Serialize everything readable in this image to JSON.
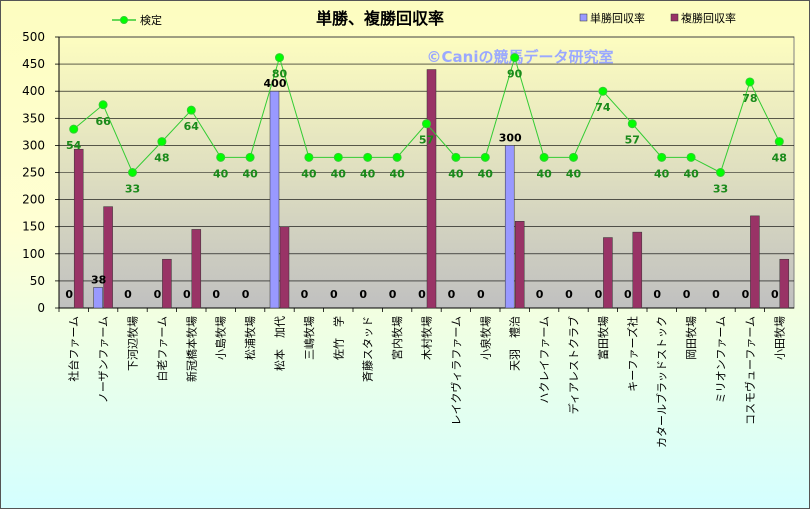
{
  "chart_data": {
    "type": "bar",
    "title": "単勝、複勝回収率",
    "watermark": "©Caniの競馬データ研究室",
    "ylim": [
      0,
      500
    ],
    "yticks": [
      "0",
      "50",
      "100",
      "150",
      "200",
      "250",
      "300",
      "350",
      "400",
      "450",
      "500"
    ],
    "legend": {
      "line": "検定",
      "win": "単勝回収率",
      "place": "複勝回収率",
      "placement": "top"
    },
    "colors": {
      "win": "#9999ff",
      "place": "#993366",
      "line": "#00ff00",
      "line_stroke": "#33cc33",
      "plot_bg_top": "#fdfdc0",
      "plot_bg_bottom": "#c0c0c0"
    },
    "categories": [
      "社台ファーム",
      "ノーザンファーム",
      "下河辺牧場",
      "白老ファーム",
      "新冠橋本牧場",
      "小島牧場",
      "松浦牧場",
      "松本　加代",
      "三嶋牧場",
      "佐竹　学",
      "斉藤スタッド",
      "宮内牧場",
      "木村牧場",
      "レイクヴィラファーム",
      "小泉牧場",
      "天羽　禮治",
      "ハクレイファーム",
      "ディアレストクラブ",
      "富田牧場",
      "キーファーズ社",
      "カタールブラッドストック",
      "岡田牧場",
      "ミリオンファーム",
      "コスモヴューファーム",
      "小田牧場"
    ],
    "series": [
      {
        "name": "単勝回収率",
        "kind": "bar",
        "values": [
          0,
          38,
          0,
          0,
          0,
          0,
          0,
          400,
          0,
          0,
          0,
          0,
          0,
          0,
          0,
          300,
          0,
          0,
          0,
          0,
          0,
          0,
          0,
          0,
          0
        ]
      },
      {
        "name": "複勝回収率",
        "kind": "bar",
        "values": [
          293,
          187,
          0,
          90,
          145,
          0,
          0,
          150,
          0,
          0,
          0,
          0,
          440,
          0,
          0,
          160,
          0,
          0,
          130,
          140,
          0,
          0,
          0,
          170,
          90
        ]
      },
      {
        "name": "検定",
        "kind": "line",
        "values": [
          330,
          375,
          250,
          307,
          365,
          278,
          278,
          462,
          278,
          278,
          278,
          278,
          340,
          278,
          278,
          462,
          278,
          278,
          400,
          340,
          278,
          278,
          250,
          417,
          307
        ],
        "labels": [
          "54",
          "66",
          "33",
          "48",
          "64",
          "40",
          "40",
          "80",
          "40",
          "40",
          "40",
          "40",
          "57",
          "40",
          "40",
          "90",
          "40",
          "40",
          "74",
          "57",
          "40",
          "40",
          "33",
          "78",
          "48"
        ]
      }
    ],
    "win_labels": [
      "0",
      "38",
      "0",
      "0",
      "0",
      "0",
      "0",
      "400",
      "0",
      "0",
      "0",
      "0",
      "0",
      "0",
      "0",
      "300",
      "0",
      "0",
      "0",
      "0",
      "0",
      "0",
      "0",
      "0",
      "0"
    ]
  }
}
